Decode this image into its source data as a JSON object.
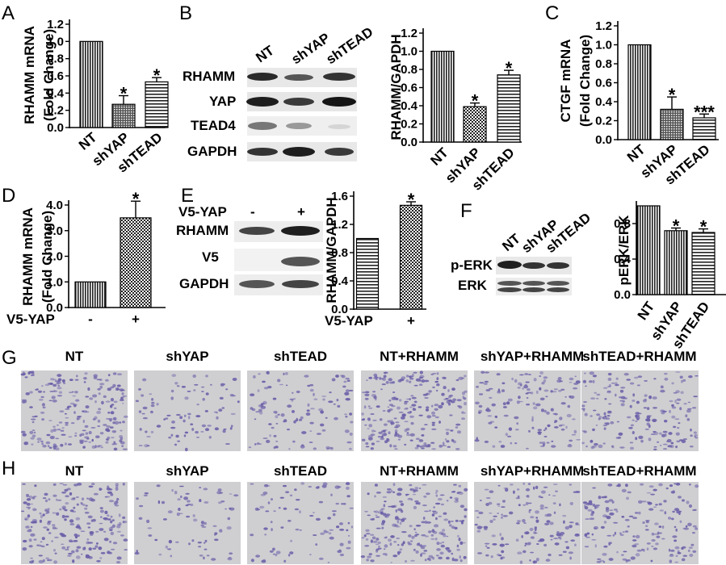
{
  "panel_letters": [
    "A",
    "B",
    "C",
    "D",
    "E",
    "F",
    "G",
    "H"
  ],
  "charts": {
    "A": {
      "ylabel": "RHAMM mRNA\n(Fold Change)",
      "ticks": [
        "0.0",
        "0.2",
        "0.4",
        "0.6",
        "0.8",
        "1.0",
        "1.2"
      ],
      "categories": [
        "NT",
        "shYAP",
        "shTEAD"
      ]
    },
    "B": {
      "ylabel": "RHAMM/GAPDH",
      "ticks": [
        "0.0",
        "0.2",
        "0.4",
        "0.6",
        "0.8",
        "1.0",
        "1.2"
      ],
      "categories": [
        "NT",
        "shYAP",
        "shTEAD"
      ]
    },
    "C": {
      "ylabel": "CTGF mRNA\n(Fold Change)",
      "ticks": [
        "0.0",
        "0.2",
        "0.4",
        "0.6",
        "0.8",
        "1.0",
        "1.2"
      ],
      "categories": [
        "NT",
        "shYAP",
        "shTEAD"
      ]
    },
    "D": {
      "ylabel": "RHAMM mRNA\n(Fold Change)",
      "ticks": [
        "0.0",
        "1.0",
        "2.0",
        "3.0",
        "4.0"
      ],
      "xprefix": "V5-YAP",
      "categories": [
        "-",
        "+"
      ]
    },
    "E": {
      "ylabel": "RHAMM/GAPDH",
      "ticks": [
        "0.0",
        "0.4",
        "0.8",
        "1.2",
        "1.6"
      ],
      "xprefix": "V5-YAP",
      "categories": [
        "-",
        "+"
      ]
    },
    "F": {
      "ylabel": "pERK/ERK",
      "ticks": [
        "0.0",
        "0.4",
        "0.8"
      ],
      "categories": [
        "NT",
        "shYAP",
        "shTEAD"
      ]
    }
  },
  "chart_data": [
    {
      "panel": "A",
      "type": "bar",
      "categories": [
        "NT",
        "shYAP",
        "shTEAD"
      ],
      "values": [
        1.0,
        0.27,
        0.53
      ],
      "errors": [
        0,
        0.1,
        0.05
      ],
      "significance": [
        "",
        "*",
        "*"
      ],
      "ylabel": "RHAMM mRNA (Fold Change)",
      "ylim": [
        0,
        1.2
      ]
    },
    {
      "panel": "B",
      "type": "bar",
      "categories": [
        "NT",
        "shYAP",
        "shTEAD"
      ],
      "values": [
        1.0,
        0.39,
        0.74
      ],
      "errors": [
        0,
        0.04,
        0.05
      ],
      "significance": [
        "",
        "*",
        "*"
      ],
      "ylabel": "RHAMM/GAPDH",
      "ylim": [
        0,
        1.2
      ]
    },
    {
      "panel": "C",
      "type": "bar",
      "categories": [
        "NT",
        "shYAP",
        "shTEAD"
      ],
      "values": [
        1.0,
        0.32,
        0.23
      ],
      "errors": [
        0,
        0.13,
        0.04
      ],
      "significance": [
        "",
        "*",
        "***"
      ],
      "ylabel": "CTGF mRNA (Fold Change)",
      "ylim": [
        0,
        1.2
      ]
    },
    {
      "panel": "D",
      "type": "bar",
      "categories": [
        "-",
        "+"
      ],
      "values": [
        1.0,
        3.5
      ],
      "errors": [
        0,
        0.65
      ],
      "significance": [
        "",
        "*"
      ],
      "xlabel": "V5-YAP",
      "ylabel": "RHAMM mRNA (Fold Change)",
      "ylim": [
        0,
        4.0
      ]
    },
    {
      "panel": "E",
      "type": "bar",
      "categories": [
        "-",
        "+"
      ],
      "values": [
        1.0,
        1.47
      ],
      "errors": [
        0,
        0.05
      ],
      "significance": [
        "",
        "*"
      ],
      "xlabel": "V5-YAP",
      "ylabel": "RHAMM/GAPDH",
      "ylim": [
        0,
        1.6
      ]
    },
    {
      "panel": "F",
      "type": "bar",
      "categories": [
        "NT",
        "shYAP",
        "shTEAD"
      ],
      "values": [
        1.0,
        0.72,
        0.7
      ],
      "errors": [
        0,
        0.03,
        0.04
      ],
      "significance": [
        "",
        "*",
        "*"
      ],
      "ylabel": "pERK/ERK",
      "ylim": [
        0,
        1.0
      ]
    }
  ],
  "blots": {
    "B": {
      "lanes": [
        "NT",
        "shYAP",
        "shTEAD"
      ],
      "rows": [
        "RHAMM",
        "YAP",
        "TEAD4",
        "GAPDH"
      ]
    },
    "E": {
      "header": "V5-YAP",
      "lanes": [
        "-",
        "+"
      ],
      "rows": [
        "RHAMM",
        "V5",
        "GAPDH"
      ]
    },
    "F": {
      "lanes": [
        "NT",
        "shYAP",
        "shTEAD"
      ],
      "rows": [
        "p-ERK",
        "ERK"
      ]
    }
  },
  "micrographs": {
    "labels": [
      "NT",
      "shYAP",
      "shTEAD",
      "NT+RHAMM",
      "shYAP+RHAMM",
      "shTEAD+RHAMM"
    ],
    "row_G_density": [
      0.9,
      0.35,
      0.45,
      0.95,
      0.55,
      0.75
    ],
    "row_H_density": [
      0.9,
      0.3,
      0.35,
      0.9,
      0.6,
      0.7
    ],
    "stain_color": "#6a5fa8",
    "background_color": "#cfcfd2"
  }
}
